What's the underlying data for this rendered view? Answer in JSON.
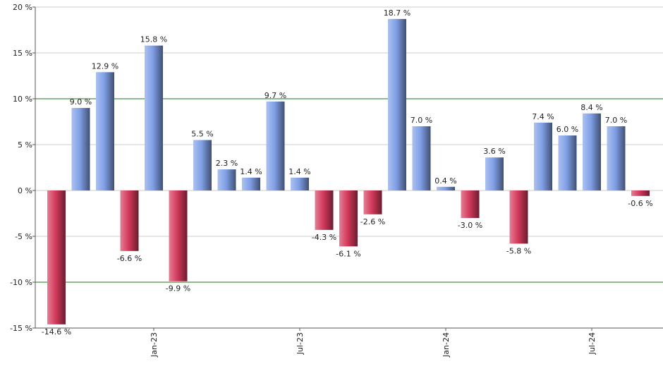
{
  "chart_data": {
    "type": "bar",
    "categories": [
      null,
      null,
      null,
      null,
      "Jan-23",
      null,
      null,
      null,
      null,
      null,
      "Jul-23",
      null,
      null,
      null,
      null,
      null,
      "Jan-24",
      null,
      null,
      null,
      null,
      null,
      "Jul-24",
      null,
      null
    ],
    "values": [
      -14.6,
      9.0,
      12.9,
      -6.6,
      15.8,
      -9.9,
      5.5,
      2.3,
      1.4,
      9.7,
      1.4,
      -4.3,
      -6.1,
      -2.6,
      18.7,
      7.0,
      0.4,
      -3.0,
      3.6,
      -5.8,
      7.4,
      6.0,
      8.4,
      7.0,
      -0.6
    ],
    "value_labels": [
      "-14.6 %",
      "9.0 %",
      "12.9 %",
      "-6.6 %",
      "15.8 %",
      "-9.9 %",
      "5.5 %",
      "2.3 %",
      "1.4 %",
      "9.7 %",
      "1.4 %",
      "-4.3 %",
      "-6.1 %",
      "-2.6 %",
      "18.7 %",
      "7.0 %",
      "0.4 %",
      "-3.0 %",
      "3.6 %",
      "-5.8 %",
      "7.4 %",
      "6.0 %",
      "8.4 %",
      "7.0 %",
      "-0.6 %"
    ],
    "positive_color": "#7f9fe6",
    "negative_color": "#d43a5c",
    "ylim": [
      -15,
      20
    ],
    "yticks": [
      {
        "value": -15,
        "label": "-15 %"
      },
      {
        "value": -10,
        "label": "-10 %"
      },
      {
        "value": -5,
        "label": "-5 %"
      },
      {
        "value": 0,
        "label": "0 %"
      },
      {
        "value": 5,
        "label": "5 %"
      },
      {
        "value": 10,
        "label": "10 %"
      },
      {
        "value": 15,
        "label": "15 %"
      },
      {
        "value": 20,
        "label": "20 %"
      }
    ],
    "grid": true,
    "grid_color": "#cccccc",
    "reference_lines": [
      10,
      -10
    ],
    "reference_color": "#1a7a1a"
  }
}
